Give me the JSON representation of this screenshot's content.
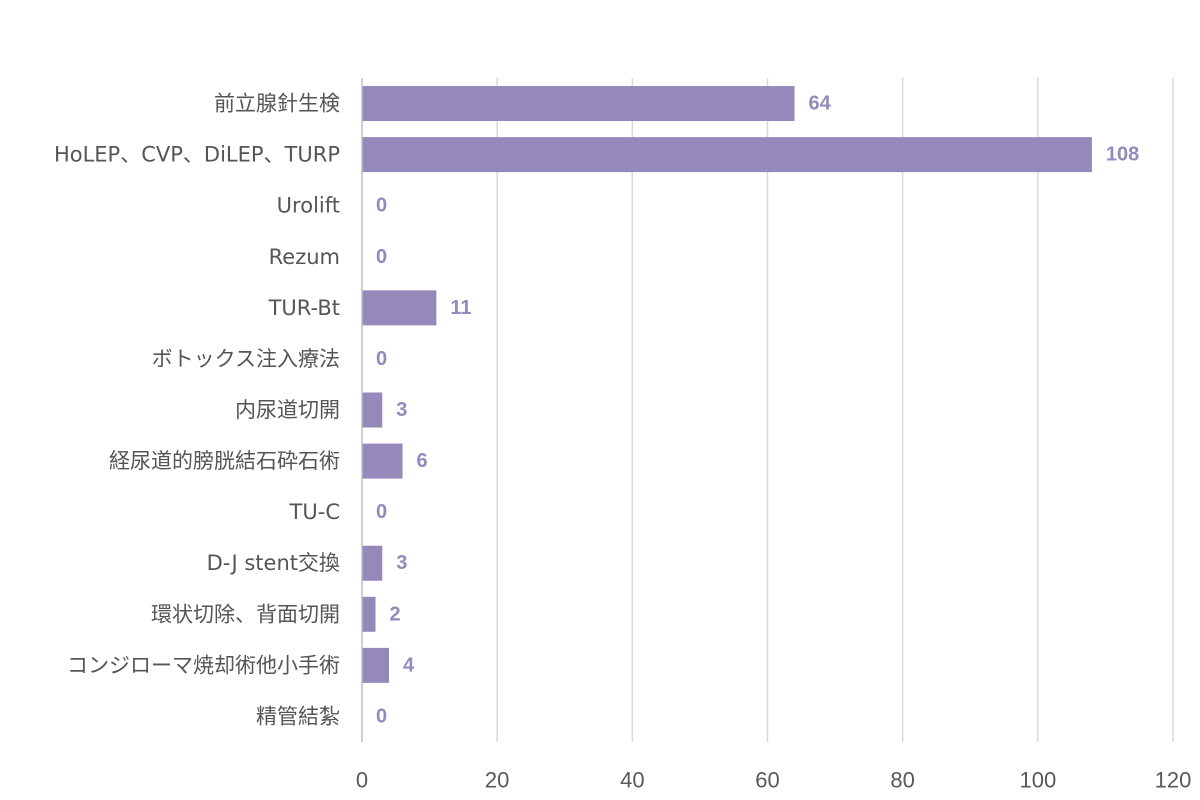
{
  "chart_data": {
    "type": "bar",
    "orientation": "horizontal",
    "title": "",
    "xlabel": "",
    "ylabel": "",
    "categories": [
      "前立腺針生検",
      "HoLEP、CVP、DiLEP、TURP",
      "Urolift",
      "Rezum",
      "TUR-Bt",
      "ボトックス注入療法",
      "内尿道切開",
      "経尿道的膀胱結石砕石術",
      "TU-C",
      "D-J stent交換",
      "環状切除、背面切開",
      "コンジローマ焼却術他小手術",
      "精管結紮"
    ],
    "values": [
      64,
      108,
      0,
      0,
      11,
      0,
      3,
      6,
      0,
      3,
      2,
      4,
      0
    ],
    "xlim": [
      0,
      120
    ],
    "xticks": [
      0,
      20,
      40,
      60,
      80,
      100,
      120
    ],
    "xtick_labels": [
      "0",
      "20",
      "40",
      "60",
      "80",
      "100",
      "120"
    ],
    "grid": true,
    "legend": "none",
    "bar_color": "#9589bc",
    "data_label_color": "#9589bc"
  }
}
